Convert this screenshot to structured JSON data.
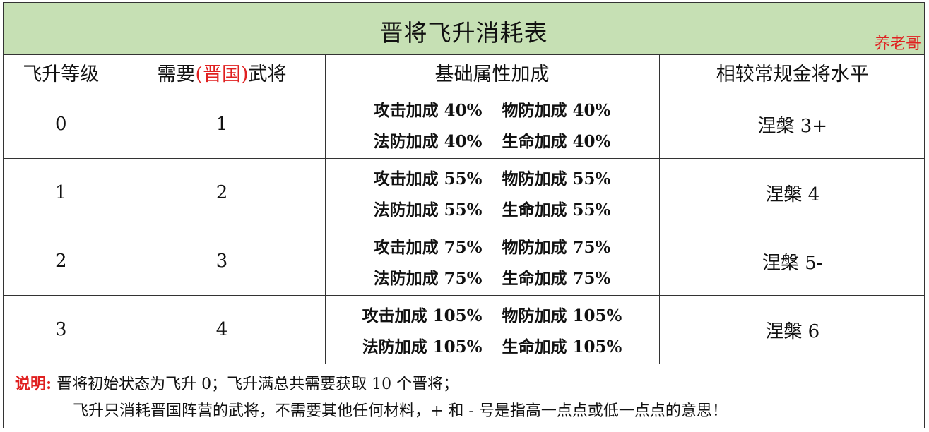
{
  "title": "晋将飞升消耗表",
  "watermark": "养老哥",
  "headers": {
    "level": "飞升等级",
    "needed_prefix": "需要",
    "needed_highlight": "(晋国)",
    "needed_suffix": "武将",
    "bonus": "基础属性加成",
    "compare": "相较常规金将水平"
  },
  "rows": [
    {
      "level": "0",
      "needed": "1",
      "attack": "攻击加成 40%",
      "pdef": "物防加成 40%",
      "mdef": "法防加成 40%",
      "hp": "生命加成 40%",
      "compare": "涅槃 3+"
    },
    {
      "level": "1",
      "needed": "2",
      "attack": "攻击加成 55%",
      "pdef": "物防加成 55%",
      "mdef": "法防加成 55%",
      "hp": "生命加成 55%",
      "compare": "涅槃 4"
    },
    {
      "level": "2",
      "needed": "3",
      "attack": "攻击加成 75%",
      "pdef": "物防加成 75%",
      "mdef": "法防加成 75%",
      "hp": "生命加成 75%",
      "compare": "涅槃 5-"
    },
    {
      "level": "3",
      "needed": "4",
      "attack": "攻击加成 105%",
      "pdef": "物防加成 105%",
      "mdef": "法防加成 105%",
      "hp": "生命加成 105%",
      "compare": "涅槃 6"
    }
  ],
  "notes": {
    "label": "说明:",
    "line1": "晋将初始状态为飞升 0；飞升满总共需要获取 10 个晋将；",
    "line2": "飞升只消耗晋国阵营的武将，不需要其他任何材料，+ 和 - 号是指高一点点或低一点点的意思！"
  }
}
